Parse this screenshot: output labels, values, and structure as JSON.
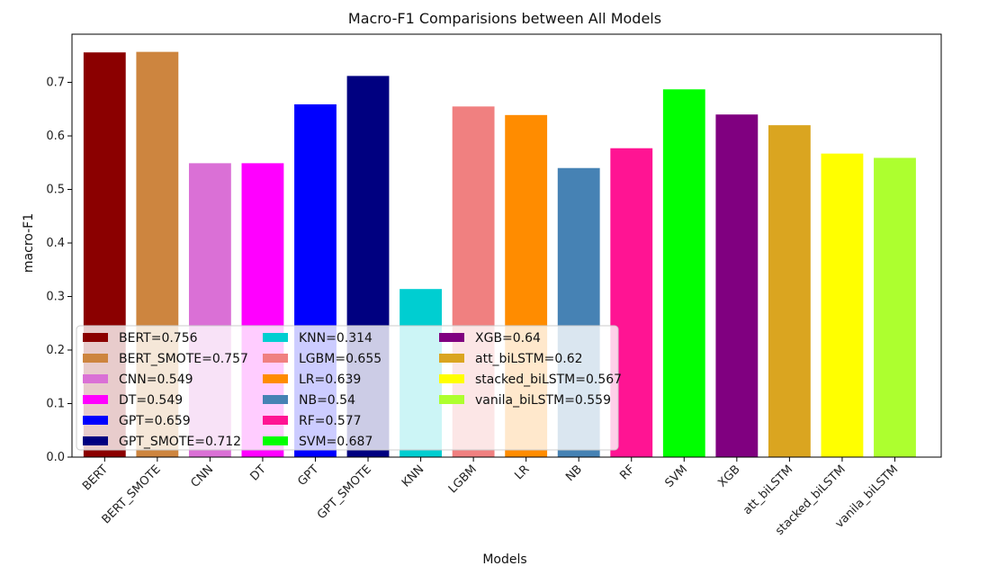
{
  "chart_data": {
    "type": "bar",
    "title": "Macro-F1 Comparisions between All Models",
    "xlabel": "Models",
    "ylabel": "macro-F1",
    "ylim": [
      0,
      0.79
    ],
    "yticks": [
      0.0,
      0.1,
      0.2,
      0.3,
      0.4,
      0.5,
      0.6,
      0.7
    ],
    "ytick_labels": [
      "0.0",
      "0.1",
      "0.2",
      "0.3",
      "0.4",
      "0.5",
      "0.6",
      "0.7"
    ],
    "grid": false,
    "legend_position": "lower-left",
    "categories": [
      "BERT",
      "BERT_SMOTE",
      "CNN",
      "DT",
      "GPT",
      "GPT_SMOTE",
      "KNN",
      "LGBM",
      "LR",
      "NB",
      "RF",
      "SVM",
      "XGB",
      "att_biLSTM",
      "stacked_biLSTM",
      "vanila_biLSTM"
    ],
    "values": [
      0.756,
      0.757,
      0.549,
      0.549,
      0.659,
      0.712,
      0.314,
      0.655,
      0.639,
      0.54,
      0.577,
      0.687,
      0.64,
      0.62,
      0.567,
      0.559
    ],
    "colors": [
      "#8b0000",
      "#cd853f",
      "#da70d6",
      "#ff00ff",
      "#0000ff",
      "#000080",
      "#00ced1",
      "#f08080",
      "#ff8c00",
      "#4682b4",
      "#ff1493",
      "#00ff00",
      "#800080",
      "#daa520",
      "#ffff00",
      "#adff2f"
    ],
    "legend_labels": [
      "BERT=0.756",
      "BERT_SMOTE=0.757",
      "CNN=0.549",
      "DT=0.549",
      "GPT=0.659",
      "GPT_SMOTE=0.712",
      "KNN=0.314",
      "LGBM=0.655",
      "LR=0.639",
      "NB=0.54",
      "RF=0.577",
      "SVM=0.687",
      "XGB=0.64",
      "att_biLSTM=0.62",
      "stacked_biLSTM=0.567",
      "vanila_biLSTM=0.559"
    ]
  }
}
